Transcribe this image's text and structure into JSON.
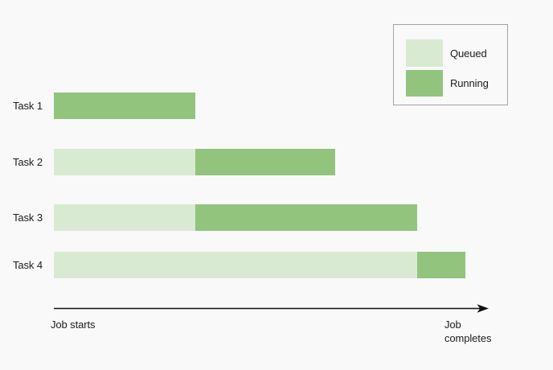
{
  "page": {
    "background": "#f9f9f9"
  },
  "chart_data": {
    "type": "bar",
    "subtype": "horizontal-stacked-gantt",
    "title": "",
    "tasks": [
      {
        "label": "Task 1",
        "segments": [
          {
            "state": "Running",
            "start": 0,
            "end": 32.6
          }
        ]
      },
      {
        "label": "Task 2",
        "segments": [
          {
            "state": "Queued",
            "start": 0,
            "end": 32.6
          },
          {
            "state": "Running",
            "start": 32.6,
            "end": 64.8
          }
        ]
      },
      {
        "label": "Task 3",
        "segments": [
          {
            "state": "Queued",
            "start": 0,
            "end": 32.6
          },
          {
            "state": "Running",
            "start": 32.6,
            "end": 83.7
          }
        ]
      },
      {
        "label": "Task 4",
        "segments": [
          {
            "state": "Queued",
            "start": 0,
            "end": 83.7
          },
          {
            "state": "Running",
            "start": 83.7,
            "end": 94.8
          }
        ]
      }
    ],
    "x_axis": {
      "range": [
        0,
        100
      ],
      "start_label": "Job starts",
      "end_label": "Job completes",
      "gridlines": false,
      "arrow": true
    },
    "legend": {
      "position": "top-right",
      "items": [
        {
          "label": "Queued",
          "color": "#d9ead3"
        },
        {
          "label": "Running",
          "color": "#93c47d"
        }
      ]
    },
    "colors": {
      "queued": "#d9ead3",
      "running": "#93c47d",
      "axis": "#111111"
    }
  }
}
